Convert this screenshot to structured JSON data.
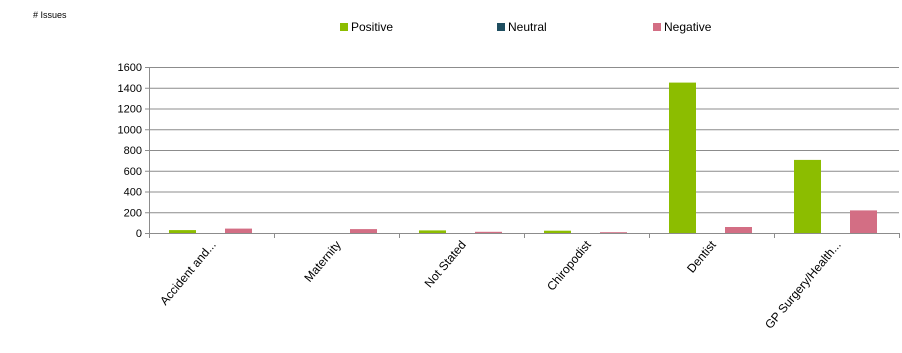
{
  "chart_data": {
    "type": "bar",
    "ylabel": "# Issues",
    "categories": [
      "Accident and...",
      "Maternity",
      "Not Stated",
      "Chiropodist",
      "Dentist",
      "GP Surgery/Health..."
    ],
    "series": [
      {
        "name": "Positive",
        "color": "#8cbd00",
        "values": [
          28,
          0,
          25,
          22,
          1450,
          705
        ]
      },
      {
        "name": "Neutral",
        "color": "#1f4e60",
        "values": [
          0,
          0,
          0,
          0,
          0,
          0
        ]
      },
      {
        "name": "Negative",
        "color": "#d36e84",
        "values": [
          42,
          38,
          12,
          8,
          58,
          218
        ]
      }
    ],
    "ylim": [
      0,
      1600
    ],
    "yticks": [
      0,
      200,
      400,
      600,
      800,
      1000,
      1200,
      1400,
      1600
    ],
    "grid": true,
    "legend_position": "top-center"
  }
}
